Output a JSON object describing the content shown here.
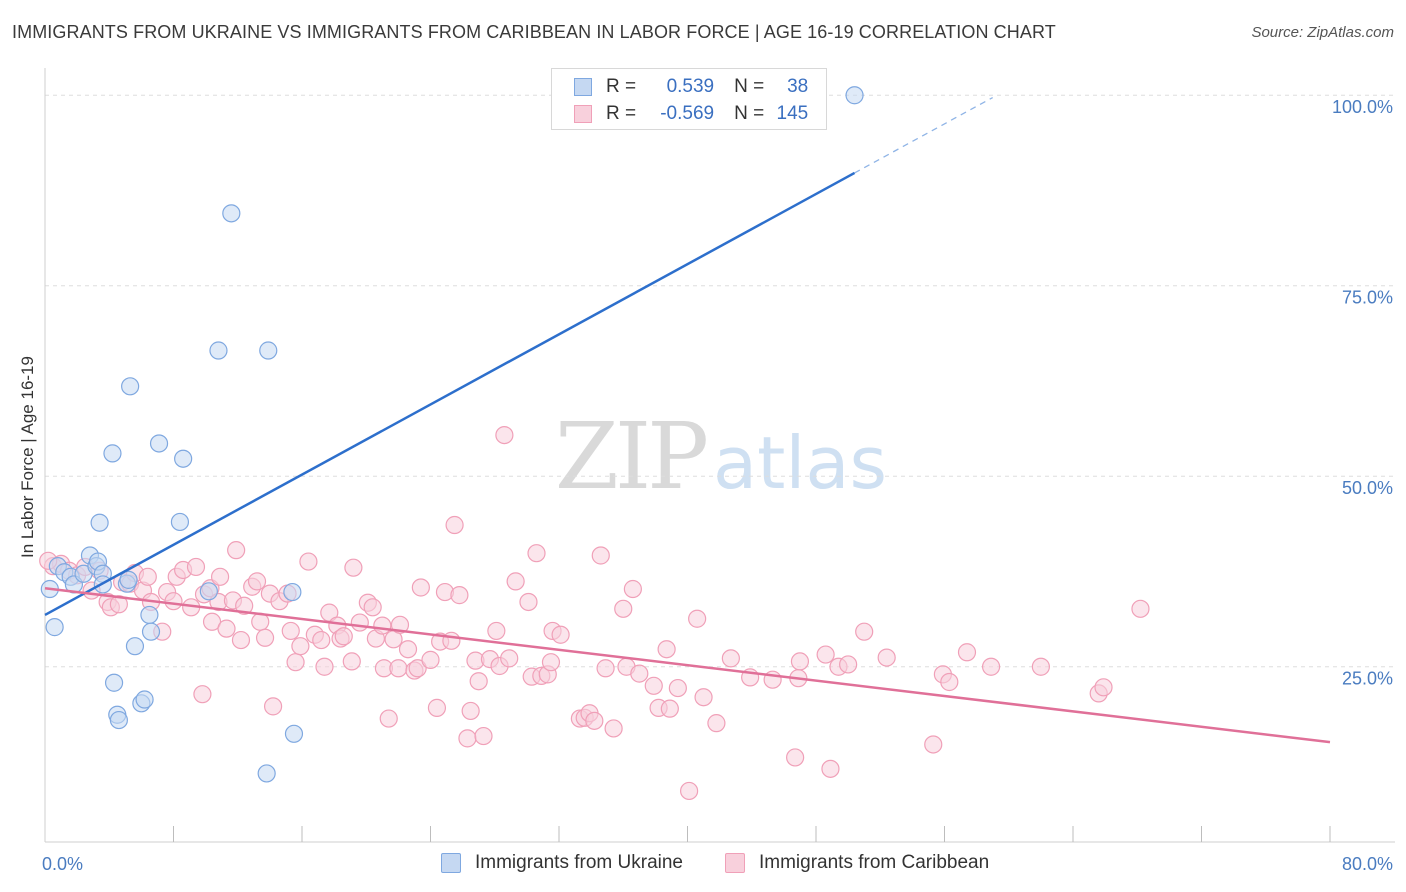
{
  "title": "IMMIGRANTS FROM UKRAINE VS IMMIGRANTS FROM CARIBBEAN IN LABOR FORCE | AGE 16-19 CORRELATION CHART",
  "source": "Source: ZipAtlas.com",
  "watermark": {
    "zip": "ZIP",
    "atlas": "atlas"
  },
  "legend_top": {
    "r_label": "R =",
    "n_label": "N =",
    "rows": [
      {
        "r": "0.539",
        "n": "38",
        "color": "#7fa8e0"
      },
      {
        "r": "-0.569",
        "n": "145",
        "color": "#f0a0b8"
      }
    ]
  },
  "chart_data": {
    "type": "scatter",
    "ylabel": "In Labor Force | Age 16-19",
    "xlim": [
      0,
      80
    ],
    "ylim": [
      2,
      102
    ],
    "x_tick_labels": [
      {
        "value": 0,
        "label": "0.0%"
      },
      {
        "value": 80,
        "label": "80.0%"
      }
    ],
    "y_tick_labels": [
      {
        "value": 100,
        "label": "100.0%"
      },
      {
        "value": 75,
        "label": "75.0%"
      },
      {
        "value": 50,
        "label": "50.0%"
      },
      {
        "value": 25,
        "label": "25.0%"
      }
    ],
    "x_minor_ticks": [
      8,
      16,
      24,
      32,
      40,
      48,
      56,
      64,
      72,
      80
    ],
    "grid_y": [
      100,
      75,
      50,
      25
    ],
    "legend_position": "bottom-center",
    "series": [
      {
        "name": "Immigrants from Ukraine",
        "color": "#7fa8e0",
        "fill": "#c5d8f2",
        "trend": {
          "x0": 0,
          "y0": 31.8,
          "x1": 50.4,
          "y1": 89.8,
          "dash_to_x": 59,
          "dash_to_y": 99.7,
          "color": "#2d6fcc"
        },
        "points": [
          [
            0.3,
            35.2
          ],
          [
            0.6,
            30.2
          ],
          [
            0.8,
            38.2
          ],
          [
            1.2,
            37.4
          ],
          [
            1.6,
            36.8
          ],
          [
            1.8,
            35.8
          ],
          [
            2.4,
            37.2
          ],
          [
            2.8,
            39.6
          ],
          [
            3.2,
            38.2
          ],
          [
            3.3,
            38.8
          ],
          [
            3.4,
            43.9
          ],
          [
            3.6,
            37.2
          ],
          [
            3.6,
            35.8
          ],
          [
            4.2,
            53.0
          ],
          [
            4.3,
            22.9
          ],
          [
            4.5,
            18.7
          ],
          [
            4.6,
            18.0
          ],
          [
            5.1,
            35.9
          ],
          [
            5.2,
            36.4
          ],
          [
            5.3,
            61.8
          ],
          [
            5.6,
            27.7
          ],
          [
            6.0,
            20.2
          ],
          [
            6.2,
            20.7
          ],
          [
            6.5,
            31.8
          ],
          [
            6.6,
            29.6
          ],
          [
            7.1,
            54.3
          ],
          [
            8.4,
            44.0
          ],
          [
            8.6,
            52.3
          ],
          [
            10.2,
            34.9
          ],
          [
            10.8,
            66.5
          ],
          [
            11.6,
            84.5
          ],
          [
            13.8,
            11.0
          ],
          [
            13.9,
            66.5
          ],
          [
            15.4,
            34.8
          ],
          [
            15.5,
            16.2
          ],
          [
            50.4,
            100.0
          ]
        ]
      },
      {
        "name": "Immigrants from Caribbean",
        "color": "#f0a0b8",
        "fill": "#f8d0dc",
        "trend": {
          "x0": 0,
          "y0": 35.3,
          "x1": 80,
          "y1": 15.1,
          "color": "#e07098"
        },
        "points": [
          [
            0.5,
            38.2
          ],
          [
            1.0,
            38.5
          ],
          [
            1.5,
            37.6
          ],
          [
            2.0,
            37.0
          ],
          [
            2.5,
            38.1
          ],
          [
            2.9,
            35.0
          ],
          [
            3.4,
            37.6
          ],
          [
            3.9,
            33.5
          ],
          [
            4.1,
            32.8
          ],
          [
            4.6,
            33.2
          ],
          [
            4.8,
            36.1
          ],
          [
            5.3,
            35.9
          ],
          [
            5.6,
            37.3
          ],
          [
            6.1,
            35.0
          ],
          [
            6.4,
            36.8
          ],
          [
            6.6,
            33.5
          ],
          [
            7.3,
            29.6
          ],
          [
            7.6,
            34.8
          ],
          [
            8.0,
            33.6
          ],
          [
            8.2,
            36.8
          ],
          [
            8.6,
            37.7
          ],
          [
            9.1,
            32.8
          ],
          [
            9.4,
            38.1
          ],
          [
            9.8,
            21.4
          ],
          [
            9.9,
            34.5
          ],
          [
            10.3,
            35.3
          ],
          [
            10.4,
            30.9
          ],
          [
            10.8,
            33.5
          ],
          [
            10.9,
            36.8
          ],
          [
            11.3,
            30.0
          ],
          [
            11.7,
            33.7
          ],
          [
            11.9,
            40.3
          ],
          [
            12.2,
            28.5
          ],
          [
            12.4,
            33.0
          ],
          [
            12.9,
            35.5
          ],
          [
            13.2,
            36.2
          ],
          [
            13.4,
            30.9
          ],
          [
            13.7,
            28.8
          ],
          [
            14.0,
            34.6
          ],
          [
            14.2,
            19.8
          ],
          [
            14.6,
            33.6
          ],
          [
            15.1,
            34.6
          ],
          [
            15.3,
            29.7
          ],
          [
            15.6,
            25.6
          ],
          [
            15.9,
            27.7
          ],
          [
            16.4,
            38.8
          ],
          [
            16.8,
            29.2
          ],
          [
            17.2,
            28.5
          ],
          [
            17.4,
            25.0
          ],
          [
            17.7,
            32.1
          ],
          [
            18.2,
            30.4
          ],
          [
            18.4,
            28.7
          ],
          [
            18.6,
            29.0
          ],
          [
            19.1,
            25.7
          ],
          [
            19.2,
            38.0
          ],
          [
            19.6,
            30.8
          ],
          [
            20.1,
            33.4
          ],
          [
            20.4,
            32.8
          ],
          [
            20.6,
            28.7
          ],
          [
            21.0,
            30.4
          ],
          [
            21.1,
            24.8
          ],
          [
            21.4,
            18.2
          ],
          [
            21.7,
            28.6
          ],
          [
            22.0,
            24.8
          ],
          [
            22.1,
            30.5
          ],
          [
            22.6,
            27.3
          ],
          [
            23.0,
            24.5
          ],
          [
            23.2,
            24.8
          ],
          [
            23.4,
            35.4
          ],
          [
            24.0,
            25.9
          ],
          [
            24.4,
            19.6
          ],
          [
            24.6,
            28.3
          ],
          [
            24.9,
            34.8
          ],
          [
            25.3,
            28.4
          ],
          [
            25.5,
            43.6
          ],
          [
            25.8,
            34.4
          ],
          [
            26.3,
            15.6
          ],
          [
            26.5,
            19.2
          ],
          [
            26.8,
            25.8
          ],
          [
            27.0,
            23.1
          ],
          [
            27.3,
            15.9
          ],
          [
            27.7,
            26.0
          ],
          [
            28.1,
            29.7
          ],
          [
            28.3,
            25.1
          ],
          [
            28.6,
            55.4
          ],
          [
            28.9,
            26.1
          ],
          [
            29.3,
            36.2
          ],
          [
            30.1,
            33.5
          ],
          [
            30.3,
            23.7
          ],
          [
            30.6,
            39.9
          ],
          [
            30.9,
            23.8
          ],
          [
            31.3,
            24.0
          ],
          [
            31.5,
            25.6
          ],
          [
            31.6,
            29.7
          ],
          [
            32.1,
            29.2
          ],
          [
            33.3,
            18.2
          ],
          [
            33.6,
            18.3
          ],
          [
            33.9,
            18.9
          ],
          [
            34.2,
            17.9
          ],
          [
            34.6,
            39.6
          ],
          [
            34.9,
            24.8
          ],
          [
            35.4,
            16.9
          ],
          [
            36.0,
            32.6
          ],
          [
            36.2,
            25.0
          ],
          [
            36.6,
            35.2
          ],
          [
            37.0,
            24.1
          ],
          [
            37.9,
            22.5
          ],
          [
            38.2,
            19.6
          ],
          [
            38.7,
            27.3
          ],
          [
            38.9,
            19.5
          ],
          [
            39.4,
            22.2
          ],
          [
            40.1,
            8.7
          ],
          [
            40.6,
            31.3
          ],
          [
            41.0,
            21.0
          ],
          [
            41.8,
            17.6
          ],
          [
            42.7,
            26.1
          ],
          [
            43.9,
            23.6
          ],
          [
            45.3,
            23.3
          ],
          [
            46.7,
            13.1
          ],
          [
            46.9,
            23.5
          ],
          [
            47.0,
            25.7
          ],
          [
            48.6,
            26.6
          ],
          [
            48.9,
            11.6
          ],
          [
            49.4,
            25.0
          ],
          [
            50.0,
            25.3
          ],
          [
            51.0,
            29.6
          ],
          [
            52.4,
            26.2
          ],
          [
            55.3,
            14.8
          ],
          [
            55.9,
            24.0
          ],
          [
            56.3,
            23.0
          ],
          [
            57.4,
            26.9
          ],
          [
            58.9,
            25.0
          ],
          [
            62.0,
            25.0
          ],
          [
            65.6,
            21.5
          ],
          [
            65.9,
            22.3
          ],
          [
            68.2,
            32.6
          ],
          [
            0.2,
            38.9
          ]
        ]
      }
    ]
  }
}
